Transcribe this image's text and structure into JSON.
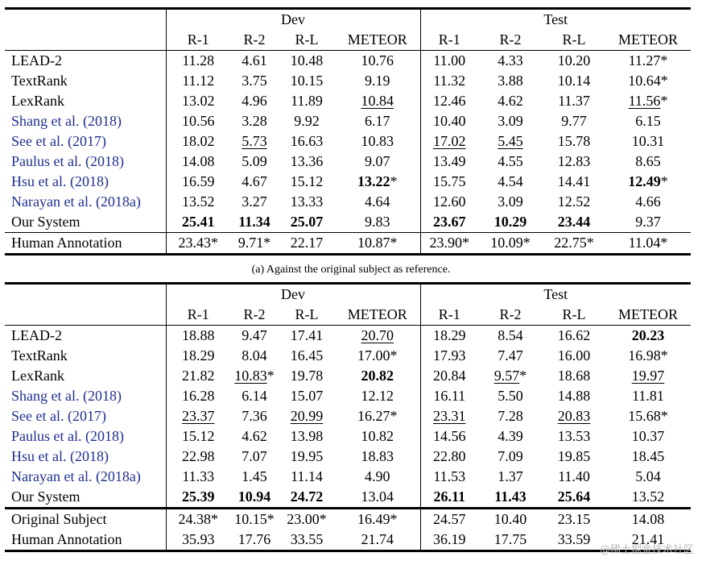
{
  "table_a": {
    "group_dev": "Dev",
    "group_test": "Test",
    "metrics": [
      "R-1",
      "R-2",
      "R-L",
      "METEOR",
      "R-1",
      "R-2",
      "R-L",
      "METEOR"
    ],
    "rows": [
      {
        "name": "LEAD-2",
        "cites": false,
        "cells": [
          {
            "t": "11.28"
          },
          {
            "t": "4.61"
          },
          {
            "t": "10.48"
          },
          {
            "t": "10.76"
          },
          {
            "t": "11.00"
          },
          {
            "t": "4.33"
          },
          {
            "t": "10.20"
          },
          {
            "t": "11.27*"
          }
        ]
      },
      {
        "name": "TextRank",
        "cites": false,
        "cells": [
          {
            "t": "11.12"
          },
          {
            "t": "3.75"
          },
          {
            "t": "10.15"
          },
          {
            "t": "9.19"
          },
          {
            "t": "11.32"
          },
          {
            "t": "3.88"
          },
          {
            "t": "10.14"
          },
          {
            "t": "10.64*"
          }
        ]
      },
      {
        "name": "LexRank",
        "cites": false,
        "cells": [
          {
            "t": "13.02"
          },
          {
            "t": "4.96"
          },
          {
            "t": "11.89"
          },
          {
            "t": "10.84",
            "u": true
          },
          {
            "t": "12.46"
          },
          {
            "t": "4.62"
          },
          {
            "t": "11.37"
          },
          {
            "t": "11.56",
            "u": true,
            "s": "*"
          }
        ]
      },
      {
        "name": "Shang et al. (2018)",
        "cites": true,
        "cells": [
          {
            "t": "10.56"
          },
          {
            "t": "3.28"
          },
          {
            "t": "9.92"
          },
          {
            "t": "6.17"
          },
          {
            "t": "10.40"
          },
          {
            "t": "3.09"
          },
          {
            "t": "9.77"
          },
          {
            "t": "6.15"
          }
        ]
      },
      {
        "name": "See et al. (2017)",
        "cites": true,
        "cells": [
          {
            "t": "18.02"
          },
          {
            "t": "5.73",
            "u": true
          },
          {
            "t": "16.63"
          },
          {
            "t": "10.83"
          },
          {
            "t": "17.02",
            "u": true
          },
          {
            "t": "5.45",
            "u": true
          },
          {
            "t": "15.78"
          },
          {
            "t": "10.31"
          }
        ]
      },
      {
        "name": "Paulus et al. (2018)",
        "cites": true,
        "cells": [
          {
            "t": "14.08"
          },
          {
            "t": "5.09"
          },
          {
            "t": "13.36"
          },
          {
            "t": "9.07"
          },
          {
            "t": "13.49"
          },
          {
            "t": "4.55"
          },
          {
            "t": "12.83"
          },
          {
            "t": "8.65"
          }
        ]
      },
      {
        "name": "Hsu et al. (2018)",
        "cites": true,
        "cells": [
          {
            "t": "16.59"
          },
          {
            "t": "4.67"
          },
          {
            "t": "15.12"
          },
          {
            "t": "13.22",
            "b": true,
            "s": "*"
          },
          {
            "t": "15.75"
          },
          {
            "t": "4.54"
          },
          {
            "t": "14.41"
          },
          {
            "t": "12.49",
            "b": true,
            "s": "*"
          }
        ]
      },
      {
        "name": "Narayan et al. (2018a)",
        "cites": true,
        "cells": [
          {
            "t": "13.52"
          },
          {
            "t": "3.27"
          },
          {
            "t": "13.33"
          },
          {
            "t": "4.64"
          },
          {
            "t": "12.60"
          },
          {
            "t": "3.09"
          },
          {
            "t": "12.52"
          },
          {
            "t": "4.66"
          }
        ]
      },
      {
        "name": "Our System",
        "cites": false,
        "cells": [
          {
            "t": "25.41",
            "b": true
          },
          {
            "t": "11.34",
            "b": true
          },
          {
            "t": "25.07",
            "b": true
          },
          {
            "t": "9.83"
          },
          {
            "t": "23.67",
            "b": true
          },
          {
            "t": "10.29",
            "b": true
          },
          {
            "t": "23.44",
            "b": true
          },
          {
            "t": "9.37"
          }
        ]
      }
    ],
    "extra_rows": [
      {
        "name": "Human Annotation",
        "cites": false,
        "cells": [
          {
            "t": "23.43*"
          },
          {
            "t": "9.71*"
          },
          {
            "t": "22.17"
          },
          {
            "t": "10.87*"
          },
          {
            "t": "23.90*"
          },
          {
            "t": "10.09*"
          },
          {
            "t": "22.75*"
          },
          {
            "t": "11.04*"
          }
        ]
      }
    ]
  },
  "caption_a": "(a) Against the original subject as reference.",
  "table_b": {
    "group_dev": "Dev",
    "group_test": "Test",
    "metrics": [
      "R-1",
      "R-2",
      "R-L",
      "METEOR",
      "R-1",
      "R-2",
      "R-L",
      "METEOR"
    ],
    "rows": [
      {
        "name": "LEAD-2",
        "cites": false,
        "cells": [
          {
            "t": "18.88"
          },
          {
            "t": "9.47"
          },
          {
            "t": "17.41"
          },
          {
            "t": "20.70",
            "u": true
          },
          {
            "t": "18.29"
          },
          {
            "t": "8.54"
          },
          {
            "t": "16.62"
          },
          {
            "t": "20.23",
            "b": true
          }
        ]
      },
      {
        "name": "TextRank",
        "cites": false,
        "cells": [
          {
            "t": "18.29"
          },
          {
            "t": "8.04"
          },
          {
            "t": "16.45"
          },
          {
            "t": "17.00*"
          },
          {
            "t": "17.93"
          },
          {
            "t": "7.47"
          },
          {
            "t": "16.00"
          },
          {
            "t": "16.98*"
          }
        ]
      },
      {
        "name": "LexRank",
        "cites": false,
        "cells": [
          {
            "t": "21.82"
          },
          {
            "t": "10.83",
            "u": true,
            "s": "*"
          },
          {
            "t": "19.78"
          },
          {
            "t": "20.82",
            "b": true
          },
          {
            "t": "20.84"
          },
          {
            "t": "9.57",
            "u": true,
            "s": "*"
          },
          {
            "t": "18.68"
          },
          {
            "t": "19.97",
            "u": true
          }
        ]
      },
      {
        "name": "Shang et al. (2018)",
        "cites": true,
        "cells": [
          {
            "t": "16.28"
          },
          {
            "t": "6.14"
          },
          {
            "t": "15.07"
          },
          {
            "t": "12.12"
          },
          {
            "t": "16.11"
          },
          {
            "t": "5.50"
          },
          {
            "t": "14.88"
          },
          {
            "t": "11.81"
          }
        ]
      },
      {
        "name": "See et al. (2017)",
        "cites": true,
        "cells": [
          {
            "t": "23.37",
            "u": true
          },
          {
            "t": "7.36"
          },
          {
            "t": "20.99",
            "u": true
          },
          {
            "t": "16.27*"
          },
          {
            "t": "23.31",
            "u": true
          },
          {
            "t": "7.28"
          },
          {
            "t": "20.83",
            "u": true
          },
          {
            "t": "15.68*"
          }
        ]
      },
      {
        "name": "Paulus et al. (2018)",
        "cites": true,
        "cells": [
          {
            "t": "15.12"
          },
          {
            "t": "4.62"
          },
          {
            "t": "13.98"
          },
          {
            "t": "10.82"
          },
          {
            "t": "14.56"
          },
          {
            "t": "4.39"
          },
          {
            "t": "13.53"
          },
          {
            "t": "10.37"
          }
        ]
      },
      {
        "name": "Hsu et al. (2018)",
        "cites": true,
        "cells": [
          {
            "t": "22.98"
          },
          {
            "t": "7.07"
          },
          {
            "t": "19.95"
          },
          {
            "t": "18.83"
          },
          {
            "t": "22.80"
          },
          {
            "t": "7.09"
          },
          {
            "t": "19.85"
          },
          {
            "t": "18.45"
          }
        ]
      },
      {
        "name": "Narayan et al. (2018a)",
        "cites": true,
        "cells": [
          {
            "t": "11.33"
          },
          {
            "t": "1.45"
          },
          {
            "t": "11.14"
          },
          {
            "t": "4.90"
          },
          {
            "t": "11.53"
          },
          {
            "t": "1.37"
          },
          {
            "t": "11.40"
          },
          {
            "t": "5.04"
          }
        ]
      },
      {
        "name": "Our System",
        "cites": false,
        "cells": [
          {
            "t": "25.39",
            "b": true
          },
          {
            "t": "10.94",
            "b": true
          },
          {
            "t": "24.72",
            "b": true
          },
          {
            "t": "13.04"
          },
          {
            "t": "26.11",
            "b": true
          },
          {
            "t": "11.43",
            "b": true
          },
          {
            "t": "25.64",
            "b": true
          },
          {
            "t": "13.52"
          }
        ]
      }
    ],
    "extra_rows": [
      {
        "name": "Original Subject",
        "cites": false,
        "cells": [
          {
            "t": "24.38*"
          },
          {
            "t": "10.15*"
          },
          {
            "t": "23.00*"
          },
          {
            "t": "16.49*"
          },
          {
            "t": "24.57"
          },
          {
            "t": "10.40"
          },
          {
            "t": "23.15"
          },
          {
            "t": "14.08"
          }
        ]
      },
      {
        "name": "Human Annotation",
        "cites": false,
        "cells": [
          {
            "t": "35.93"
          },
          {
            "t": "17.76"
          },
          {
            "t": "33.55"
          },
          {
            "t": "21.74"
          },
          {
            "t": "36.19"
          },
          {
            "t": "17.75"
          },
          {
            "t": "33.59"
          },
          {
            "t": "21.41"
          }
        ]
      }
    ]
  },
  "watermark": "@稀土掘金技术社区"
}
